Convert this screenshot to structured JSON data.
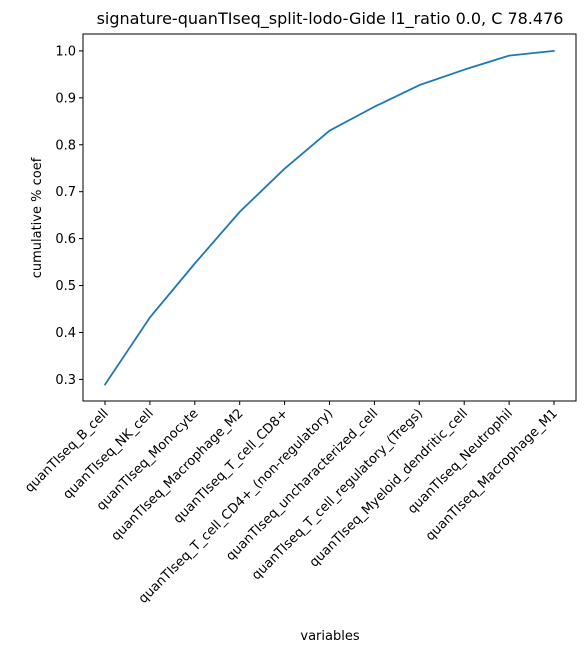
{
  "chart_data": {
    "type": "line",
    "title": "signature-quanTIseq_split-lodo-Gide l1_ratio 0.0, C 78.476",
    "xlabel": "variables",
    "ylabel": "cumulative % coef",
    "categories": [
      "quanTIseq_B_cell",
      "quanTIseq_NK_cell",
      "quanTIseq_Monocyte",
      "quanTIseq_Macrophage_M2",
      "quanTIseq_T_cell_CD8+",
      "quanTIseq_T_cell_CD4+_(non-regulatory)",
      "quanTIseq_uncharacterized_cell",
      "quanTIseq_T_cell_regulatory_(Tregs)",
      "quanTIseq_Myeloid_dendritic_cell",
      "quanTIseq_Neutrophil",
      "quanTIseq_Macrophage_M1"
    ],
    "series": [
      {
        "values": [
          0.289,
          0.432,
          0.547,
          0.657,
          0.749,
          0.83,
          0.881,
          0.927,
          0.96,
          0.99,
          1.0
        ],
        "color": "#1f77b4"
      }
    ],
    "yticks": [
      "0.3",
      "0.4",
      "0.5",
      "0.6",
      "0.7",
      "0.8",
      "0.9",
      "1.0"
    ],
    "ylim": [
      0.254,
      1.036
    ],
    "grid": false
  }
}
